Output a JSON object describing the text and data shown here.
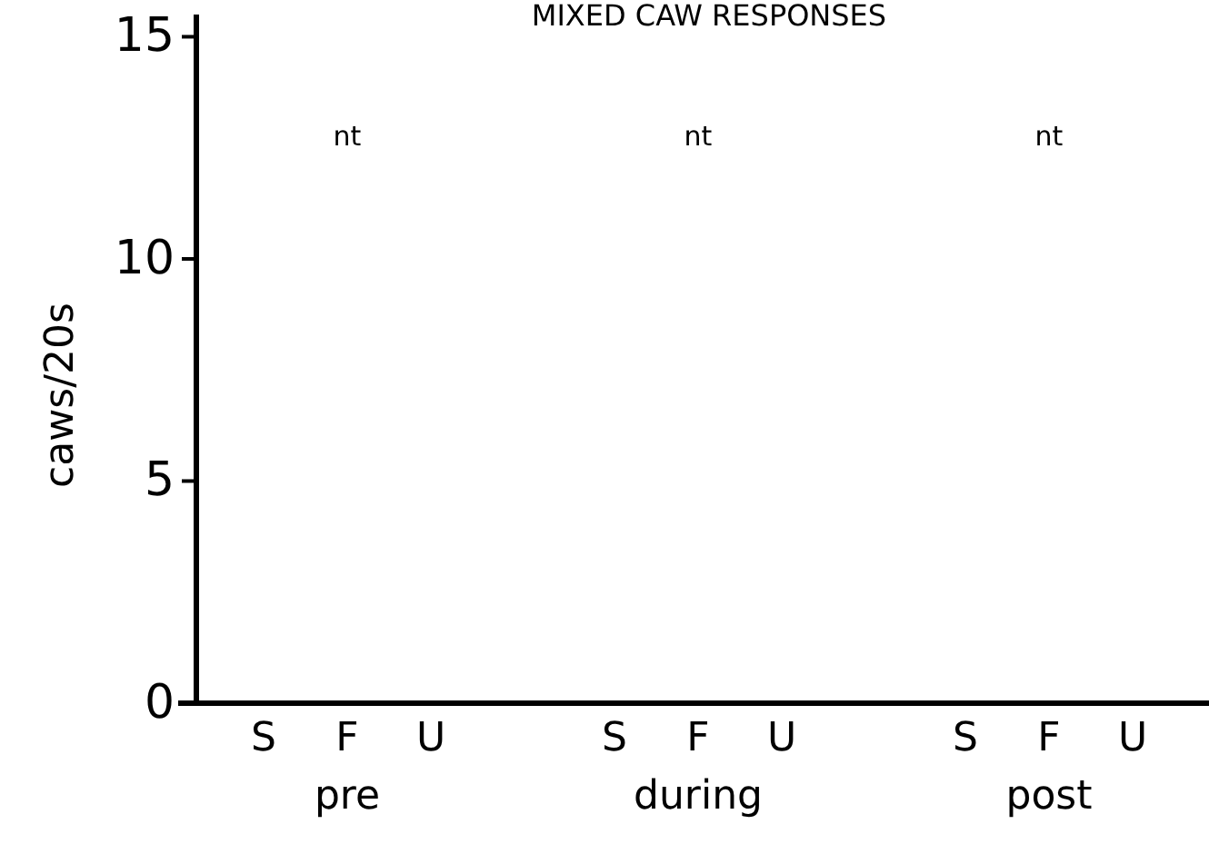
{
  "chart_data": {
    "type": "bar",
    "title": "MIXED CAW RESPONSES",
    "ylabel": "caws/20s",
    "categories": [
      "S",
      "F",
      "U",
      "S",
      "F",
      "U",
      "S",
      "F",
      "U"
    ],
    "values": [
      null,
      null,
      null,
      null,
      null,
      null,
      null,
      null,
      null
    ],
    "value_labels": [
      null,
      "nt",
      null,
      null,
      "nt",
      null,
      null,
      "nt",
      null
    ],
    "annotations": [
      "pre",
      "during",
      "post"
    ],
    "ylim": [
      0,
      15.5
    ],
    "yticks": [
      0,
      5,
      10,
      15
    ]
  }
}
